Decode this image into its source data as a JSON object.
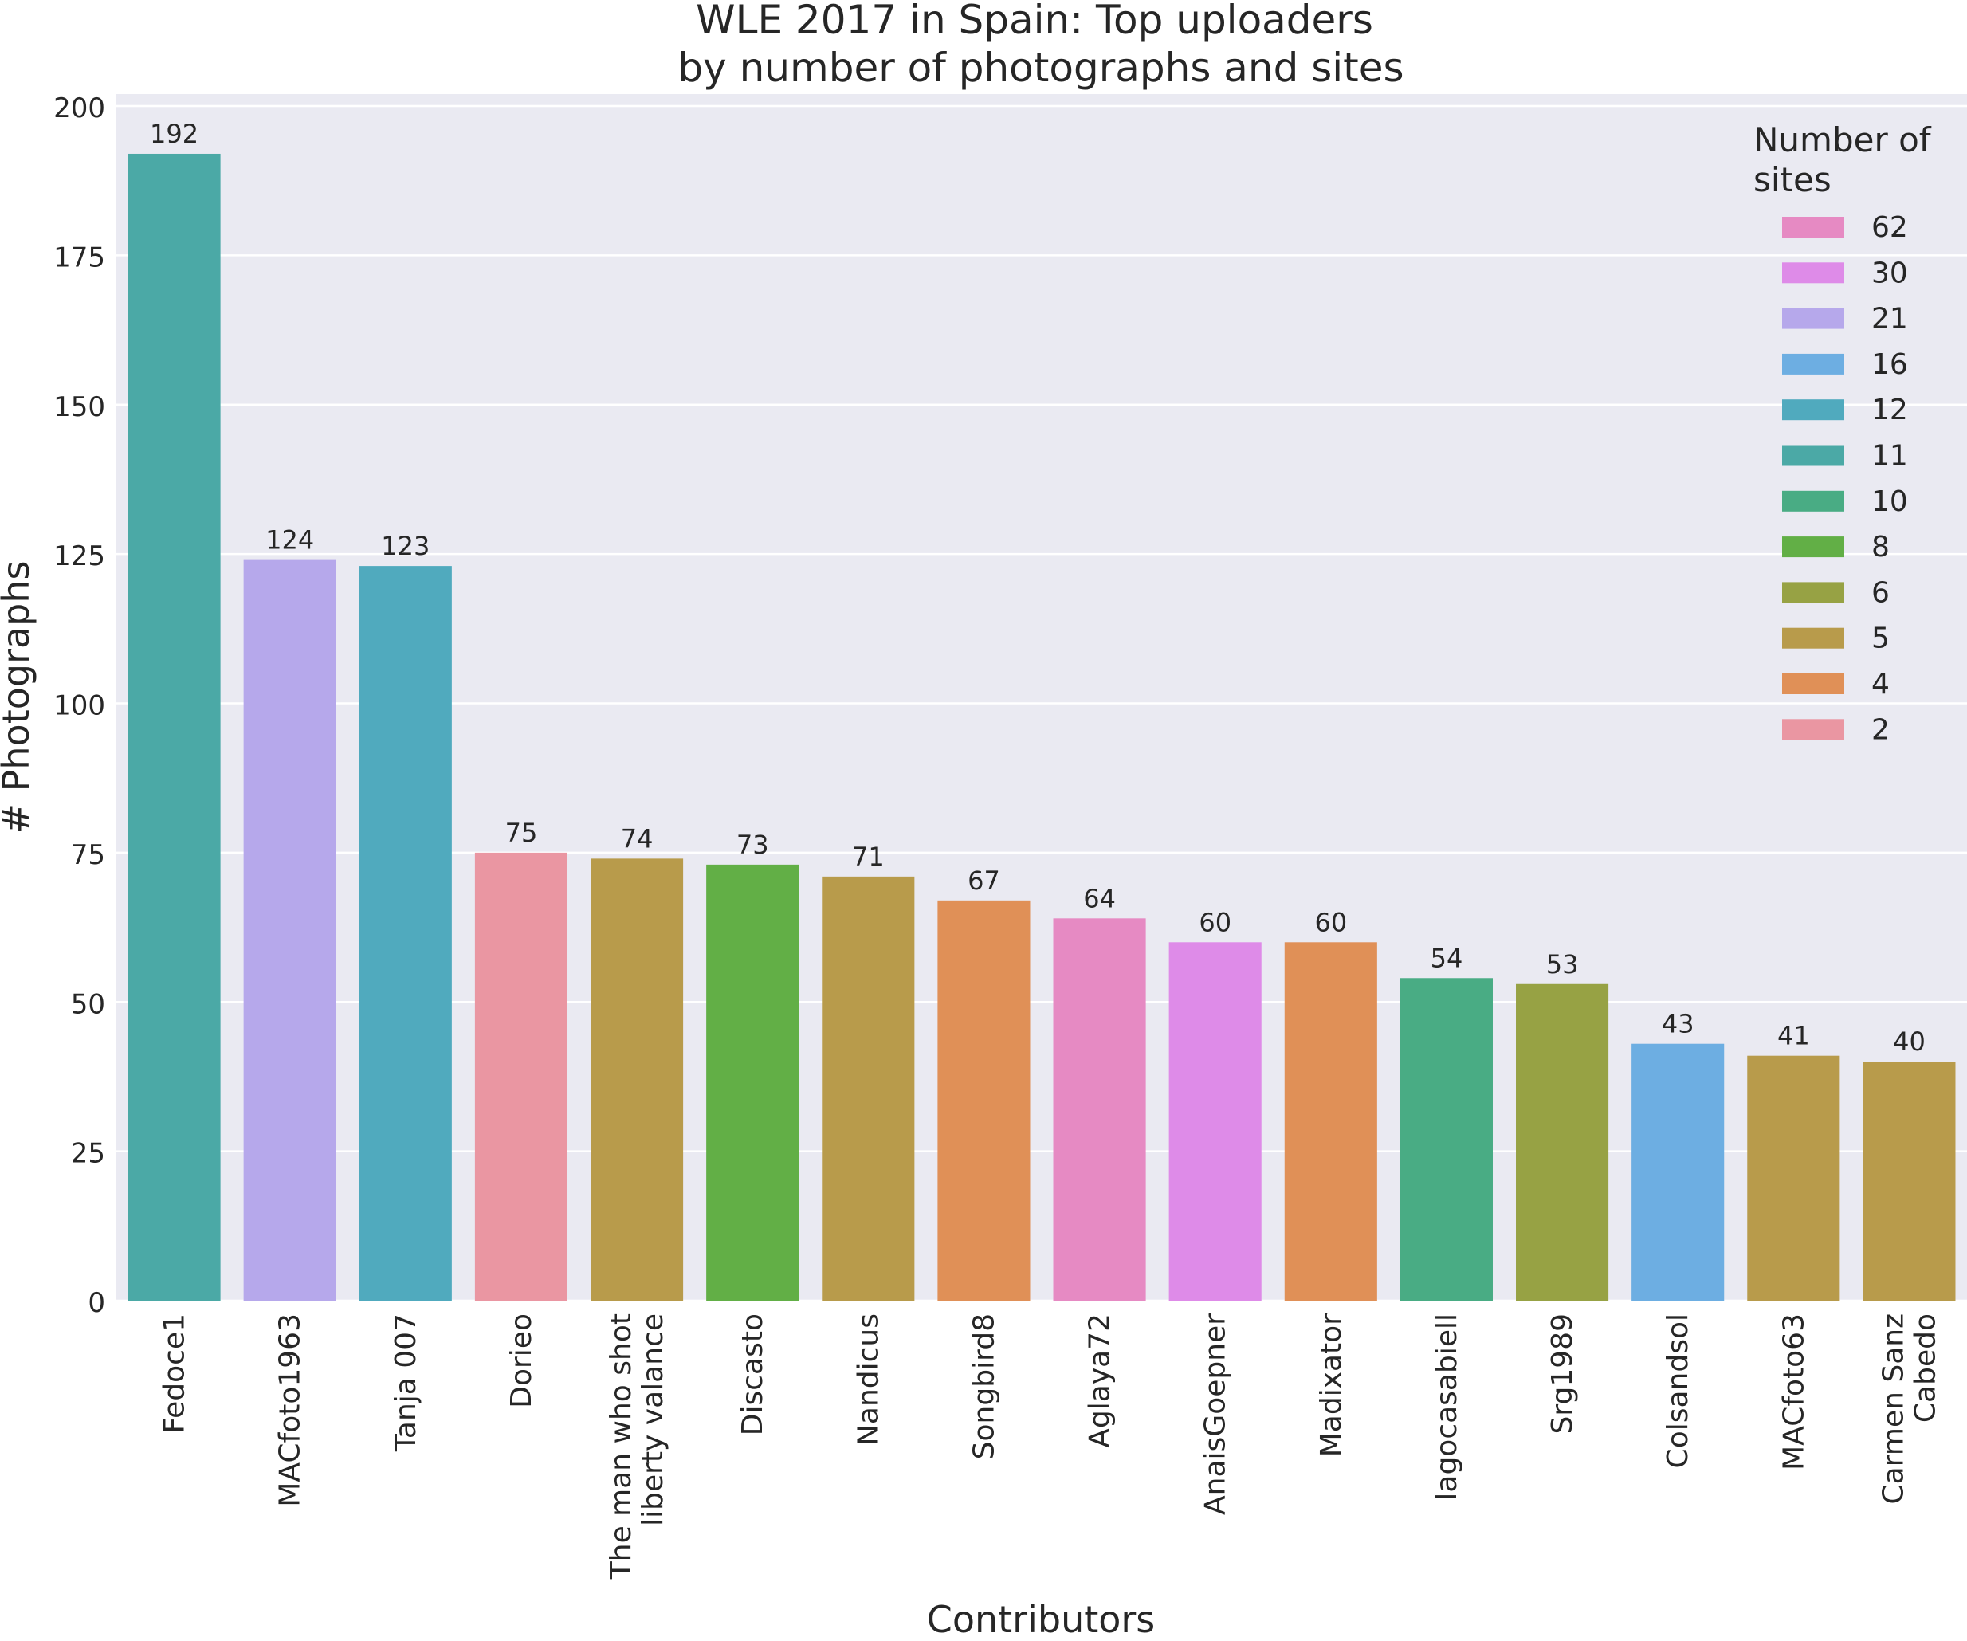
{
  "chart_data": {
    "type": "bar",
    "title_lines": [
      "WLE 2017 in Spain: Top uploaders",
      "by number of photographs and sites"
    ],
    "xlabel": "Contributors",
    "ylabel": "# Photographs",
    "ylim": [
      0,
      200
    ],
    "yticks": [
      0,
      25,
      50,
      75,
      100,
      125,
      150,
      175,
      200
    ],
    "grid": true,
    "legend": {
      "title_lines": [
        "Number of",
        "sites"
      ],
      "placement": "top-right",
      "entries": [
        {
          "label": "62",
          "color": "#E68AC3"
        },
        {
          "label": "30",
          "color": "#DE8BE8"
        },
        {
          "label": "21",
          "color": "#B6A8EB"
        },
        {
          "label": "16",
          "color": "#6DAEE2"
        },
        {
          "label": "12",
          "color": "#50AABE"
        },
        {
          "label": "11",
          "color": "#4BA9A6"
        },
        {
          "label": "10",
          "color": "#49AC84"
        },
        {
          "label": "8",
          "color": "#62AF46"
        },
        {
          "label": "6",
          "color": "#97A244"
        },
        {
          "label": "5",
          "color": "#B89B4B"
        },
        {
          "label": "4",
          "color": "#E09057"
        },
        {
          "label": "2",
          "color": "#EA96A2"
        }
      ]
    },
    "bars": [
      {
        "label_lines": [
          "Fedoce1"
        ],
        "value": 192,
        "color": "#4BA9A6"
      },
      {
        "label_lines": [
          "MACfoto1963"
        ],
        "value": 124,
        "color": "#B6A8EB"
      },
      {
        "label_lines": [
          "Tanja 007"
        ],
        "value": 123,
        "color": "#50AABE"
      },
      {
        "label_lines": [
          "Dorieo"
        ],
        "value": 75,
        "color": "#EA96A2"
      },
      {
        "label_lines": [
          "The man who shot",
          "liberty valance"
        ],
        "value": 74,
        "color": "#B89B4B"
      },
      {
        "label_lines": [
          "Discasto"
        ],
        "value": 73,
        "color": "#62AF46"
      },
      {
        "label_lines": [
          "Nandicus"
        ],
        "value": 71,
        "color": "#B89B4B"
      },
      {
        "label_lines": [
          "Songbird8"
        ],
        "value": 67,
        "color": "#E09057"
      },
      {
        "label_lines": [
          "Aglaya72"
        ],
        "value": 64,
        "color": "#E68AC3"
      },
      {
        "label_lines": [
          "AnaisGoepner"
        ],
        "value": 60,
        "color": "#DE8BE8"
      },
      {
        "label_lines": [
          "Madixator"
        ],
        "value": 60,
        "color": "#E09057"
      },
      {
        "label_lines": [
          "Iagocasabiell"
        ],
        "value": 54,
        "color": "#49AC84"
      },
      {
        "label_lines": [
          "Srg1989"
        ],
        "value": 53,
        "color": "#97A244"
      },
      {
        "label_lines": [
          "Colsandsol"
        ],
        "value": 43,
        "color": "#6DAEE2"
      },
      {
        "label_lines": [
          "MACfoto63"
        ],
        "value": 41,
        "color": "#B89B4B"
      },
      {
        "label_lines": [
          "Carmen Sanz",
          "Cabedo"
        ],
        "value": 40,
        "color": "#B89B4B"
      }
    ]
  }
}
